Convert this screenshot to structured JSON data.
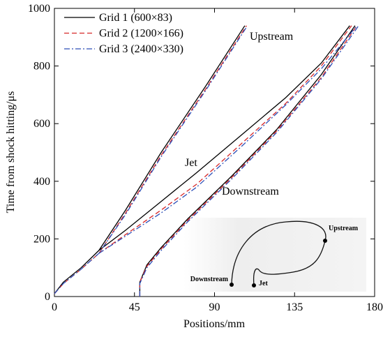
{
  "chart_data": {
    "type": "line",
    "x_label": "Positions/mm",
    "y_label": "Time from shock hitting/μs",
    "xlim": [
      0,
      180
    ],
    "xticks": [
      0,
      45,
      90,
      135,
      180
    ],
    "ylim": [
      0,
      1000
    ],
    "yticks": [
      0,
      200,
      400,
      600,
      800,
      1000
    ],
    "legend": "upper-left",
    "series": [
      {
        "name": "Grid 1 (600×83)",
        "color": "#000000",
        "dash": "solid",
        "x": [
          0,
          5,
          15,
          25,
          40,
          60,
          85,
          107,
          null,
          25,
          40,
          60,
          80,
          105,
          130,
          150,
          166,
          null,
          48,
          48,
          52,
          60,
          75,
          100,
          125,
          150,
          169
        ],
        "values": [
          10,
          50,
          100,
          160,
          300,
          500,
          730,
          940,
          null,
          160,
          230,
          330,
          430,
          560,
          690,
          810,
          940,
          null,
          0,
          50,
          110,
          170,
          270,
          420,
          580,
          770,
          940
        ]
      },
      {
        "name": "Grid 2 (1200×166)",
        "color": "#d62728",
        "dash": "dashed",
        "x": [
          0,
          5,
          15,
          25,
          40,
          60,
          85,
          108,
          null,
          25,
          40,
          60,
          80,
          105,
          130,
          150,
          167,
          null,
          48,
          48,
          52,
          60,
          75,
          100,
          125,
          150,
          170
        ],
        "values": [
          10,
          45,
          95,
          150,
          290,
          490,
          720,
          940,
          null,
          150,
          215,
          300,
          390,
          530,
          670,
          800,
          940,
          null,
          0,
          50,
          105,
          165,
          265,
          415,
          575,
          760,
          940
        ]
      },
      {
        "name": "Grid 3 (2400×330)",
        "color": "#2c4fb8",
        "dash": "dashdot",
        "x": [
          0,
          5,
          15,
          25,
          40,
          60,
          85,
          108,
          null,
          25,
          40,
          60,
          80,
          105,
          130,
          150,
          170,
          null,
          48,
          48,
          52,
          60,
          75,
          100,
          125,
          150,
          171
        ],
        "values": [
          10,
          45,
          95,
          150,
          285,
          485,
          715,
          935,
          null,
          150,
          210,
          290,
          380,
          520,
          665,
          790,
          940,
          null,
          0,
          45,
          100,
          160,
          260,
          410,
          570,
          755,
          940
        ]
      }
    ],
    "annotations": [
      "Upstream",
      "Jet",
      "Downstream"
    ],
    "inset_labels": [
      "Upstream",
      "Jet",
      "Downstream"
    ]
  }
}
